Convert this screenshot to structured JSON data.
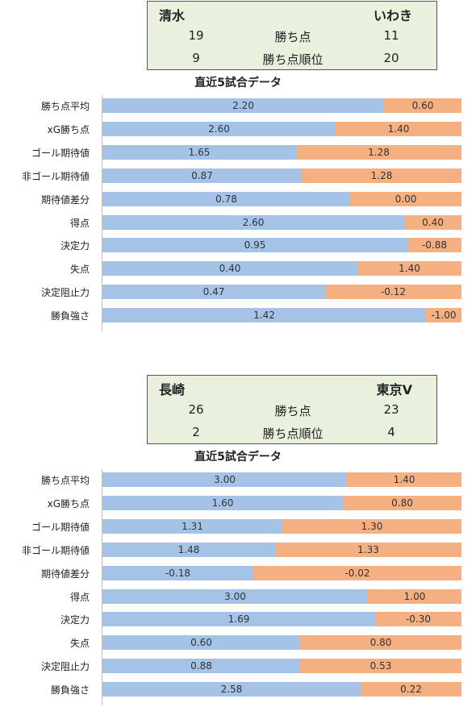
{
  "chart_data": [
    {
      "type": "bar",
      "title": "直近5試合データ",
      "home_team": "清水",
      "away_team": "いわき",
      "summary": [
        {
          "label": "勝ち点",
          "home": "19",
          "away": "11"
        },
        {
          "label": "勝ち点順位",
          "home": "9",
          "away": "20"
        }
      ],
      "categories": [
        "勝ち点平均",
        "xG勝ち点",
        "ゴール期待値",
        "非ゴール期待値",
        "期待値差分",
        "得点",
        "決定力",
        "失点",
        "決定阻止力",
        "勝負強さ"
      ],
      "series": [
        {
          "values": [
            2.2,
            2.6,
            1.65,
            0.87,
            0.78,
            2.6,
            0.95,
            0.4,
            0.47,
            1.42
          ],
          "labels": [
            "2.20",
            "2.60",
            "1.65",
            "0.87",
            "0.78",
            "2.60",
            "0.95",
            "0.40",
            "0.47",
            "1.42"
          ]
        },
        {
          "values": [
            0.6,
            1.4,
            1.28,
            1.28,
            0.0,
            0.4,
            -0.88,
            1.4,
            -0.12,
            -1.0
          ],
          "labels": [
            "0.60",
            "1.40",
            "1.28",
            "1.28",
            "0.00",
            "0.40",
            "-0.88",
            "1.40",
            "-0.12",
            "-1.00"
          ]
        }
      ],
      "home_share": [
        0.785,
        0.65,
        0.54,
        0.555,
        0.69,
        0.84,
        0.85,
        0.71,
        0.62,
        0.9
      ]
    },
    {
      "type": "bar",
      "title": "直近5試合データ",
      "home_team": "長崎",
      "away_team": "東京V",
      "summary": [
        {
          "label": "勝ち点",
          "home": "26",
          "away": "23"
        },
        {
          "label": "勝ち点順位",
          "home": "2",
          "away": "4"
        }
      ],
      "categories": [
        "勝ち点平均",
        "xG勝ち点",
        "ゴール期待値",
        "非ゴール期待値",
        "期待値差分",
        "得点",
        "決定力",
        "失点",
        "決定阻止力",
        "勝負強さ"
      ],
      "series": [
        {
          "values": [
            3.0,
            1.6,
            1.31,
            1.48,
            -0.18,
            3.0,
            1.69,
            0.6,
            0.88,
            2.58
          ],
          "labels": [
            "3.00",
            "1.60",
            "1.31",
            "1.48",
            "-0.18",
            "3.00",
            "1.69",
            "0.60",
            "0.88",
            "2.58"
          ]
        },
        {
          "values": [
            1.4,
            0.8,
            1.3,
            1.33,
            -0.02,
            1.0,
            -0.3,
            0.8,
            0.53,
            0.22
          ],
          "labels": [
            "1.40",
            "0.80",
            "1.30",
            "1.33",
            "-0.02",
            "1.00",
            "-0.30",
            "0.80",
            "0.53",
            "0.22"
          ]
        }
      ],
      "home_share": [
        0.68,
        0.67,
        0.5,
        0.48,
        0.42,
        0.74,
        0.76,
        0.55,
        0.55,
        0.72
      ]
    }
  ],
  "colors": {
    "home": "#a4c3e6",
    "away": "#f4b081",
    "scorebox": "#e9f1de"
  }
}
